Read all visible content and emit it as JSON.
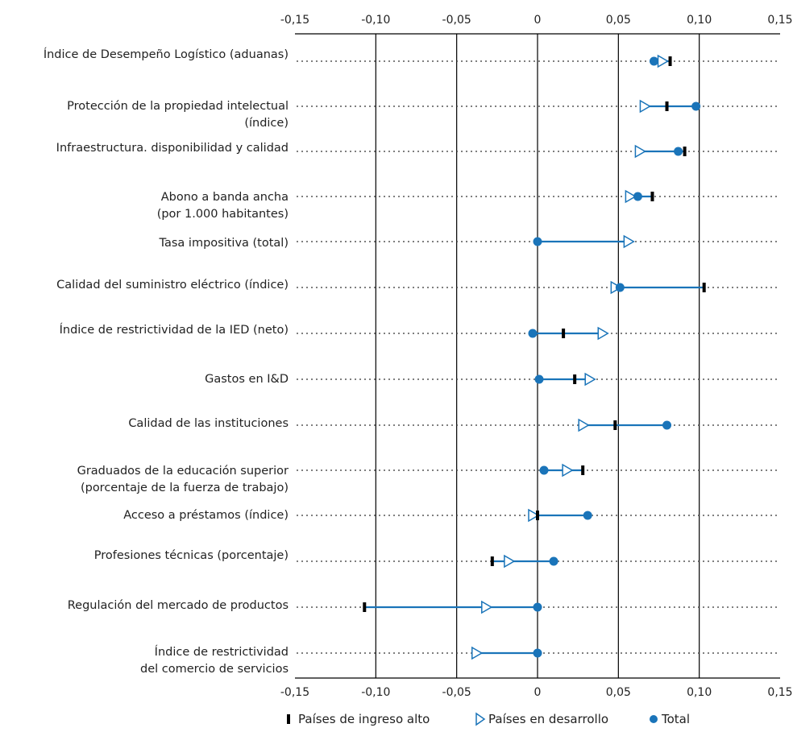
{
  "chart_data": {
    "type": "dot-range",
    "xlim": [
      -0.15,
      0.15
    ],
    "ticks": [
      "-0,15",
      "-0,10",
      "-0,05",
      "0",
      "0,05",
      "0,10",
      "0,15"
    ],
    "tick_values": [
      -0.15,
      -0.1,
      -0.05,
      0,
      0.05,
      0.1,
      0.15
    ],
    "grid": "vertical lines at each tick; dotted horizontal guides per row",
    "legend_position": "bottom",
    "colors": {
      "line": "#1a74b9",
      "total": "#1a74b9",
      "high_income": "#000000",
      "developing": "#1a74b9"
    },
    "categories": [
      [
        "Índice de Desempeño Logístico (aduanas)"
      ],
      [
        "Protección de la propiedad intelectual",
        "(índice)"
      ],
      [
        "Infraestructura. disponibilidad y calidad"
      ],
      [
        "Abono a banda ancha",
        "(por 1.000 habitantes)"
      ],
      [
        "Tasa impositiva (total)"
      ],
      [
        "Calidad del suministro eléctrico (índice)"
      ],
      [
        "Índice de restrictividad de la IED (neto)"
      ],
      [
        "Gastos en I&D"
      ],
      [
        "Calidad de las instituciones"
      ],
      [
        "Graduados de la educación superior",
        "(porcentaje de la fuerza de trabajo)"
      ],
      [
        "Acceso a préstamos (índice)"
      ],
      [
        "Profesiones técnicas (porcentaje)"
      ],
      [
        "Regulación del mercado de productos"
      ],
      [
        "Índice de restrictividad",
        "del comercio de servicios"
      ]
    ],
    "series": [
      {
        "name": "Países de ingreso alto",
        "marker": "bar",
        "values": [
          0.082,
          0.08,
          0.091,
          0.071,
          null,
          0.103,
          0.016,
          0.023,
          0.048,
          0.028,
          0.0,
          -0.028,
          -0.107,
          null
        ]
      },
      {
        "name": "Países en desarrollo",
        "marker": "open-triangle-right",
        "values": [
          0.077,
          0.066,
          0.063,
          0.057,
          0.056,
          0.048,
          0.04,
          0.032,
          0.028,
          0.018,
          -0.003,
          -0.018,
          -0.032,
          -0.038
        ]
      },
      {
        "name": "Total",
        "marker": "filled-circle",
        "values": [
          0.072,
          0.098,
          0.087,
          0.062,
          0.0,
          0.051,
          -0.003,
          0.001,
          0.08,
          0.004,
          0.031,
          0.01,
          0.0,
          0.0
        ]
      }
    ]
  }
}
